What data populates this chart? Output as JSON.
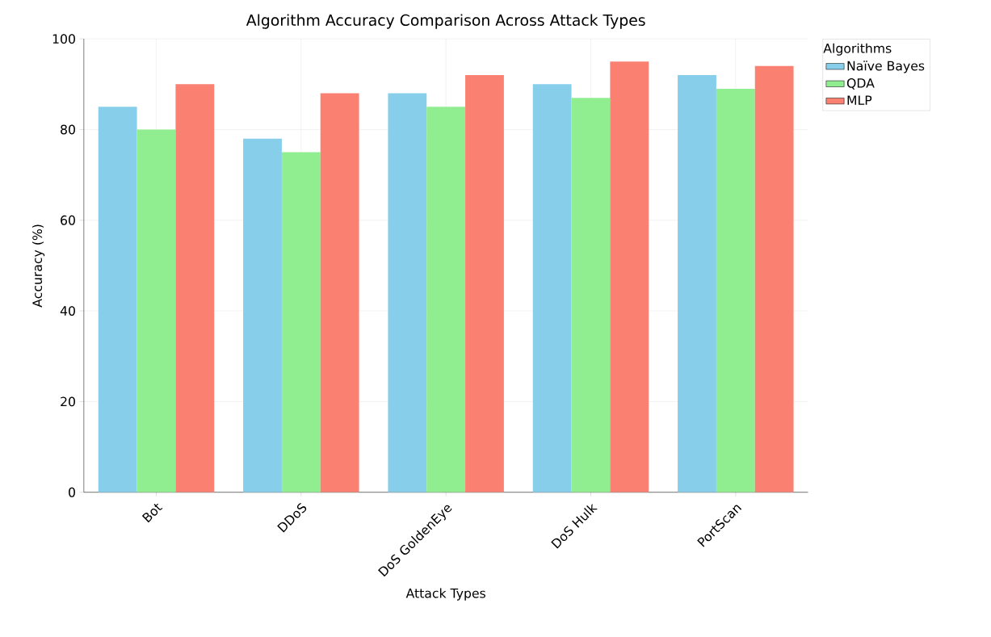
{
  "chart_data": {
    "type": "bar",
    "title": "Algorithm Accuracy Comparison Across Attack Types",
    "xlabel": "Attack Types",
    "ylabel": "Accuracy (%)",
    "legend_title": "Algorithms",
    "categories": [
      "Bot",
      "DDoS",
      "DoS GoldenEye",
      "DoS Hulk",
      "PortScan"
    ],
    "series": [
      {
        "name": "Naïve Bayes",
        "color": "#87ceeb",
        "values": [
          85,
          78,
          88,
          90,
          92
        ]
      },
      {
        "name": "QDA",
        "color": "#90ee90",
        "values": [
          80,
          75,
          85,
          87,
          89
        ]
      },
      {
        "name": "MLP",
        "color": "#fa8072",
        "values": [
          90,
          88,
          92,
          95,
          94
        ]
      }
    ],
    "ylim": [
      0,
      100
    ],
    "yticks": [
      0,
      20,
      40,
      60,
      80,
      100
    ],
    "grid": true,
    "legend": "top right"
  }
}
